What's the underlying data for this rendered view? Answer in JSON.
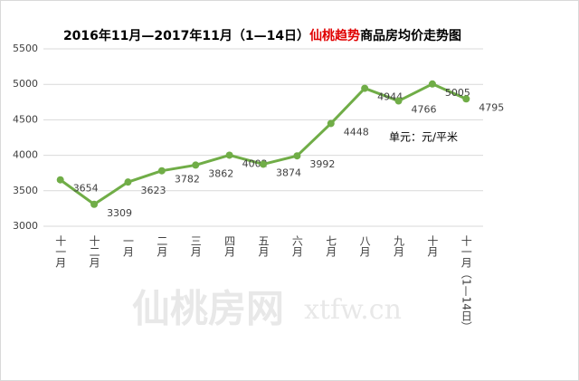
{
  "chart_data": {
    "type": "line",
    "title_parts": [
      "2016年11月—2017年11月（1—14日）",
      "仙桃趋势",
      "商品房均价走势图"
    ],
    "title_colors": [
      "#000000",
      "#e00000",
      "#000000"
    ],
    "categories": [
      "十一月",
      "十二月",
      "一月",
      "二月",
      "三月",
      "四月",
      "五月",
      "六月",
      "七月",
      "八月",
      "九月",
      "十月",
      "十一月（1—14日）"
    ],
    "series": [
      {
        "color": "#70ad47",
        "values": [
          3654,
          3309,
          3623,
          3782,
          3862,
          4002,
          3874,
          3992,
          4448,
          4944,
          4766,
          5005,
          4795
        ]
      }
    ],
    "ylim": [
      3000,
      5500
    ],
    "yticks": [
      3000,
      3500,
      4000,
      4500,
      5000,
      5500
    ],
    "grid": true,
    "unit_note": "单元：元/平米",
    "watermark": [
      "仙桃房网",
      "xtfw.cn"
    ]
  }
}
